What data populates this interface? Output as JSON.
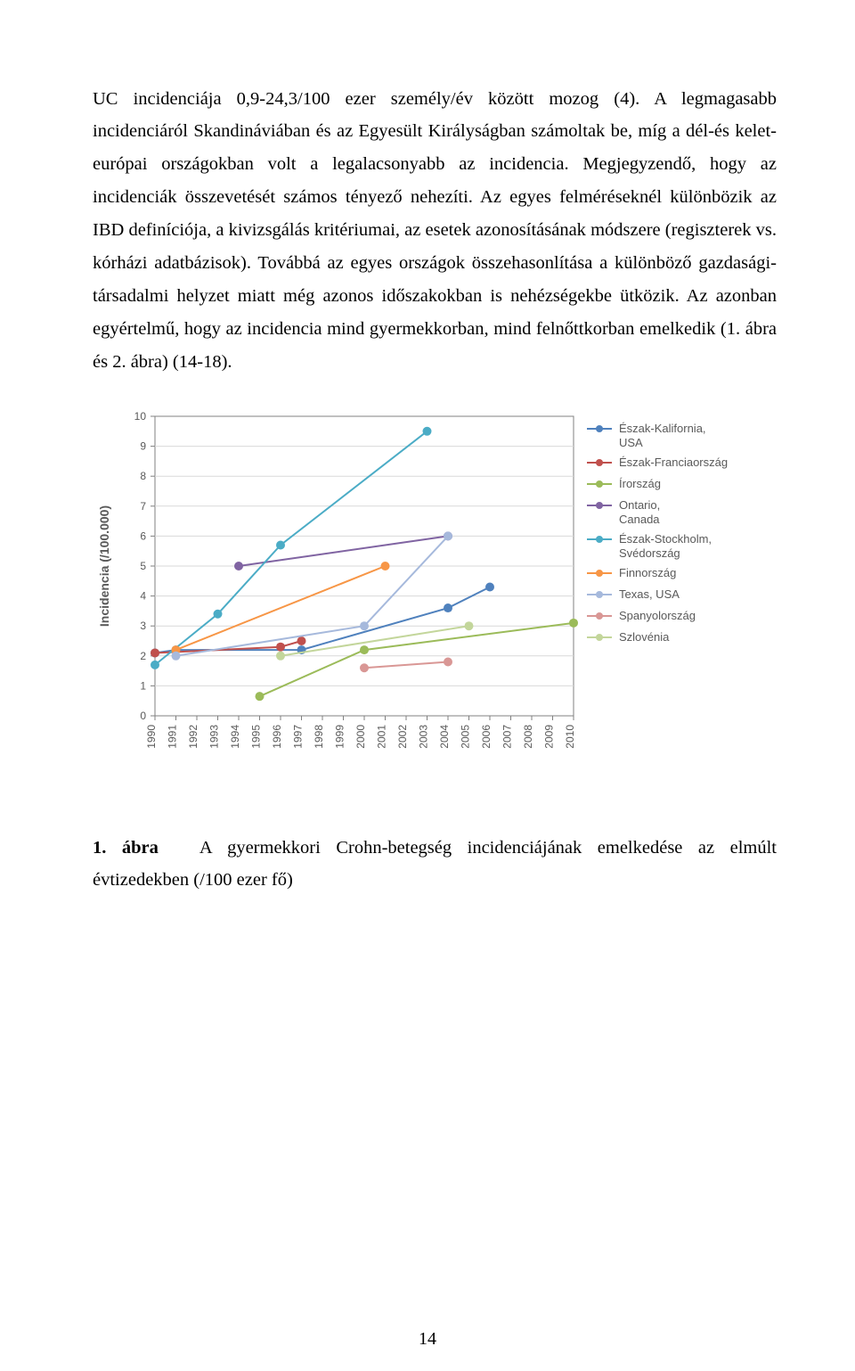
{
  "paragraph": "UC incidenciája 0,9-24,3/100 ezer személy/év között mozog (4). A legmagasabb incidenciáról Skandináviában és az Egyesült Királyságban számoltak be, míg a dél-és kelet-európai országokban volt a legalacsonyabb az incidencia. Megjegyzendő, hogy az incidenciák összevetését számos tényező nehezíti. Az egyes felméréseknél különbözik az IBD definíciója, a kivizsgálás kritériumai, az esetek azonosításának módszere (regiszterek vs. kórházi adatbázisok). Továbbá az egyes országok összehasonlítása a különböző gazdasági-társadalmi helyzet miatt még azonos időszakokban is nehézségekbe ütközik. Az azonban egyértelmű, hogy az incidencia mind gyermekkorban, mind felnőttkorban emelkedik (1. ábra és 2. ábra) (14-18).",
  "caption": {
    "label": "1. ábra",
    "text": "A gyermekkori Crohn-betegség incidenciájának emelkedése az elmúlt évtizedekben (/100 ezer fő)"
  },
  "page_number": "14",
  "chart": {
    "type": "line-with-markers",
    "background_color": "#ffffff",
    "plot_bg": "#ffffff",
    "grid_color": "#d9d9d9",
    "axis_color": "#808080",
    "text_color": "#595959",
    "ylabel": "Incidencia (/100.000)",
    "label_fontsize": 14,
    "tick_fontsize": 12,
    "legend_fontsize": 13,
    "xlim": [
      1990,
      2010
    ],
    "ylim": [
      0,
      10
    ],
    "ytick_step": 1,
    "xticks": [
      1990,
      1991,
      1992,
      1993,
      1994,
      1995,
      1996,
      1997,
      1998,
      1999,
      2000,
      2001,
      2002,
      2003,
      2004,
      2005,
      2006,
      2007,
      2008,
      2009,
      2010
    ],
    "marker_radius": 5,
    "line_width": 2,
    "series": [
      {
        "name": "Észak-Kalifornia, USA",
        "color": "#4f81bd",
        "points": [
          [
            1990,
            2.1
          ],
          [
            1991,
            2.2
          ],
          [
            1997,
            2.2
          ],
          [
            2004,
            3.6
          ],
          [
            2006,
            4.3
          ]
        ]
      },
      {
        "name": "Észak-Franciaország",
        "color": "#c0504d",
        "points": [
          [
            1990,
            2.1
          ],
          [
            1996,
            2.3
          ],
          [
            1997,
            2.5
          ]
        ]
      },
      {
        "name": "Írország",
        "color": "#9bbb59",
        "points": [
          [
            1995,
            0.65
          ],
          [
            2000,
            2.2
          ],
          [
            2010,
            3.1
          ]
        ]
      },
      {
        "name": "Ontario, Canada",
        "color": "#8064a2",
        "points": [
          [
            1994,
            5.0
          ],
          [
            2004,
            6.0
          ]
        ]
      },
      {
        "name": "Észak-Stockholm, Svédország",
        "color": "#4bacc6",
        "points": [
          [
            1990,
            1.7
          ],
          [
            1993,
            3.4
          ],
          [
            1996,
            5.7
          ],
          [
            2003,
            9.5
          ]
        ]
      },
      {
        "name": "Finnország",
        "color": "#f79646",
        "points": [
          [
            1991,
            2.2
          ],
          [
            2001,
            5.0
          ]
        ]
      },
      {
        "name": "Texas, USA",
        "color": "#a6b9dc",
        "points": [
          [
            1991,
            2.0
          ],
          [
            2000,
            3.0
          ],
          [
            2004,
            6.0
          ]
        ]
      },
      {
        "name": "Spanyolország",
        "color": "#d99795",
        "points": [
          [
            2000,
            1.6
          ],
          [
            2004,
            1.8
          ]
        ]
      },
      {
        "name": "Szlovénia",
        "color": "#c3d69b",
        "points": [
          [
            1996,
            2.0
          ],
          [
            2005,
            3.0
          ]
        ]
      }
    ]
  }
}
